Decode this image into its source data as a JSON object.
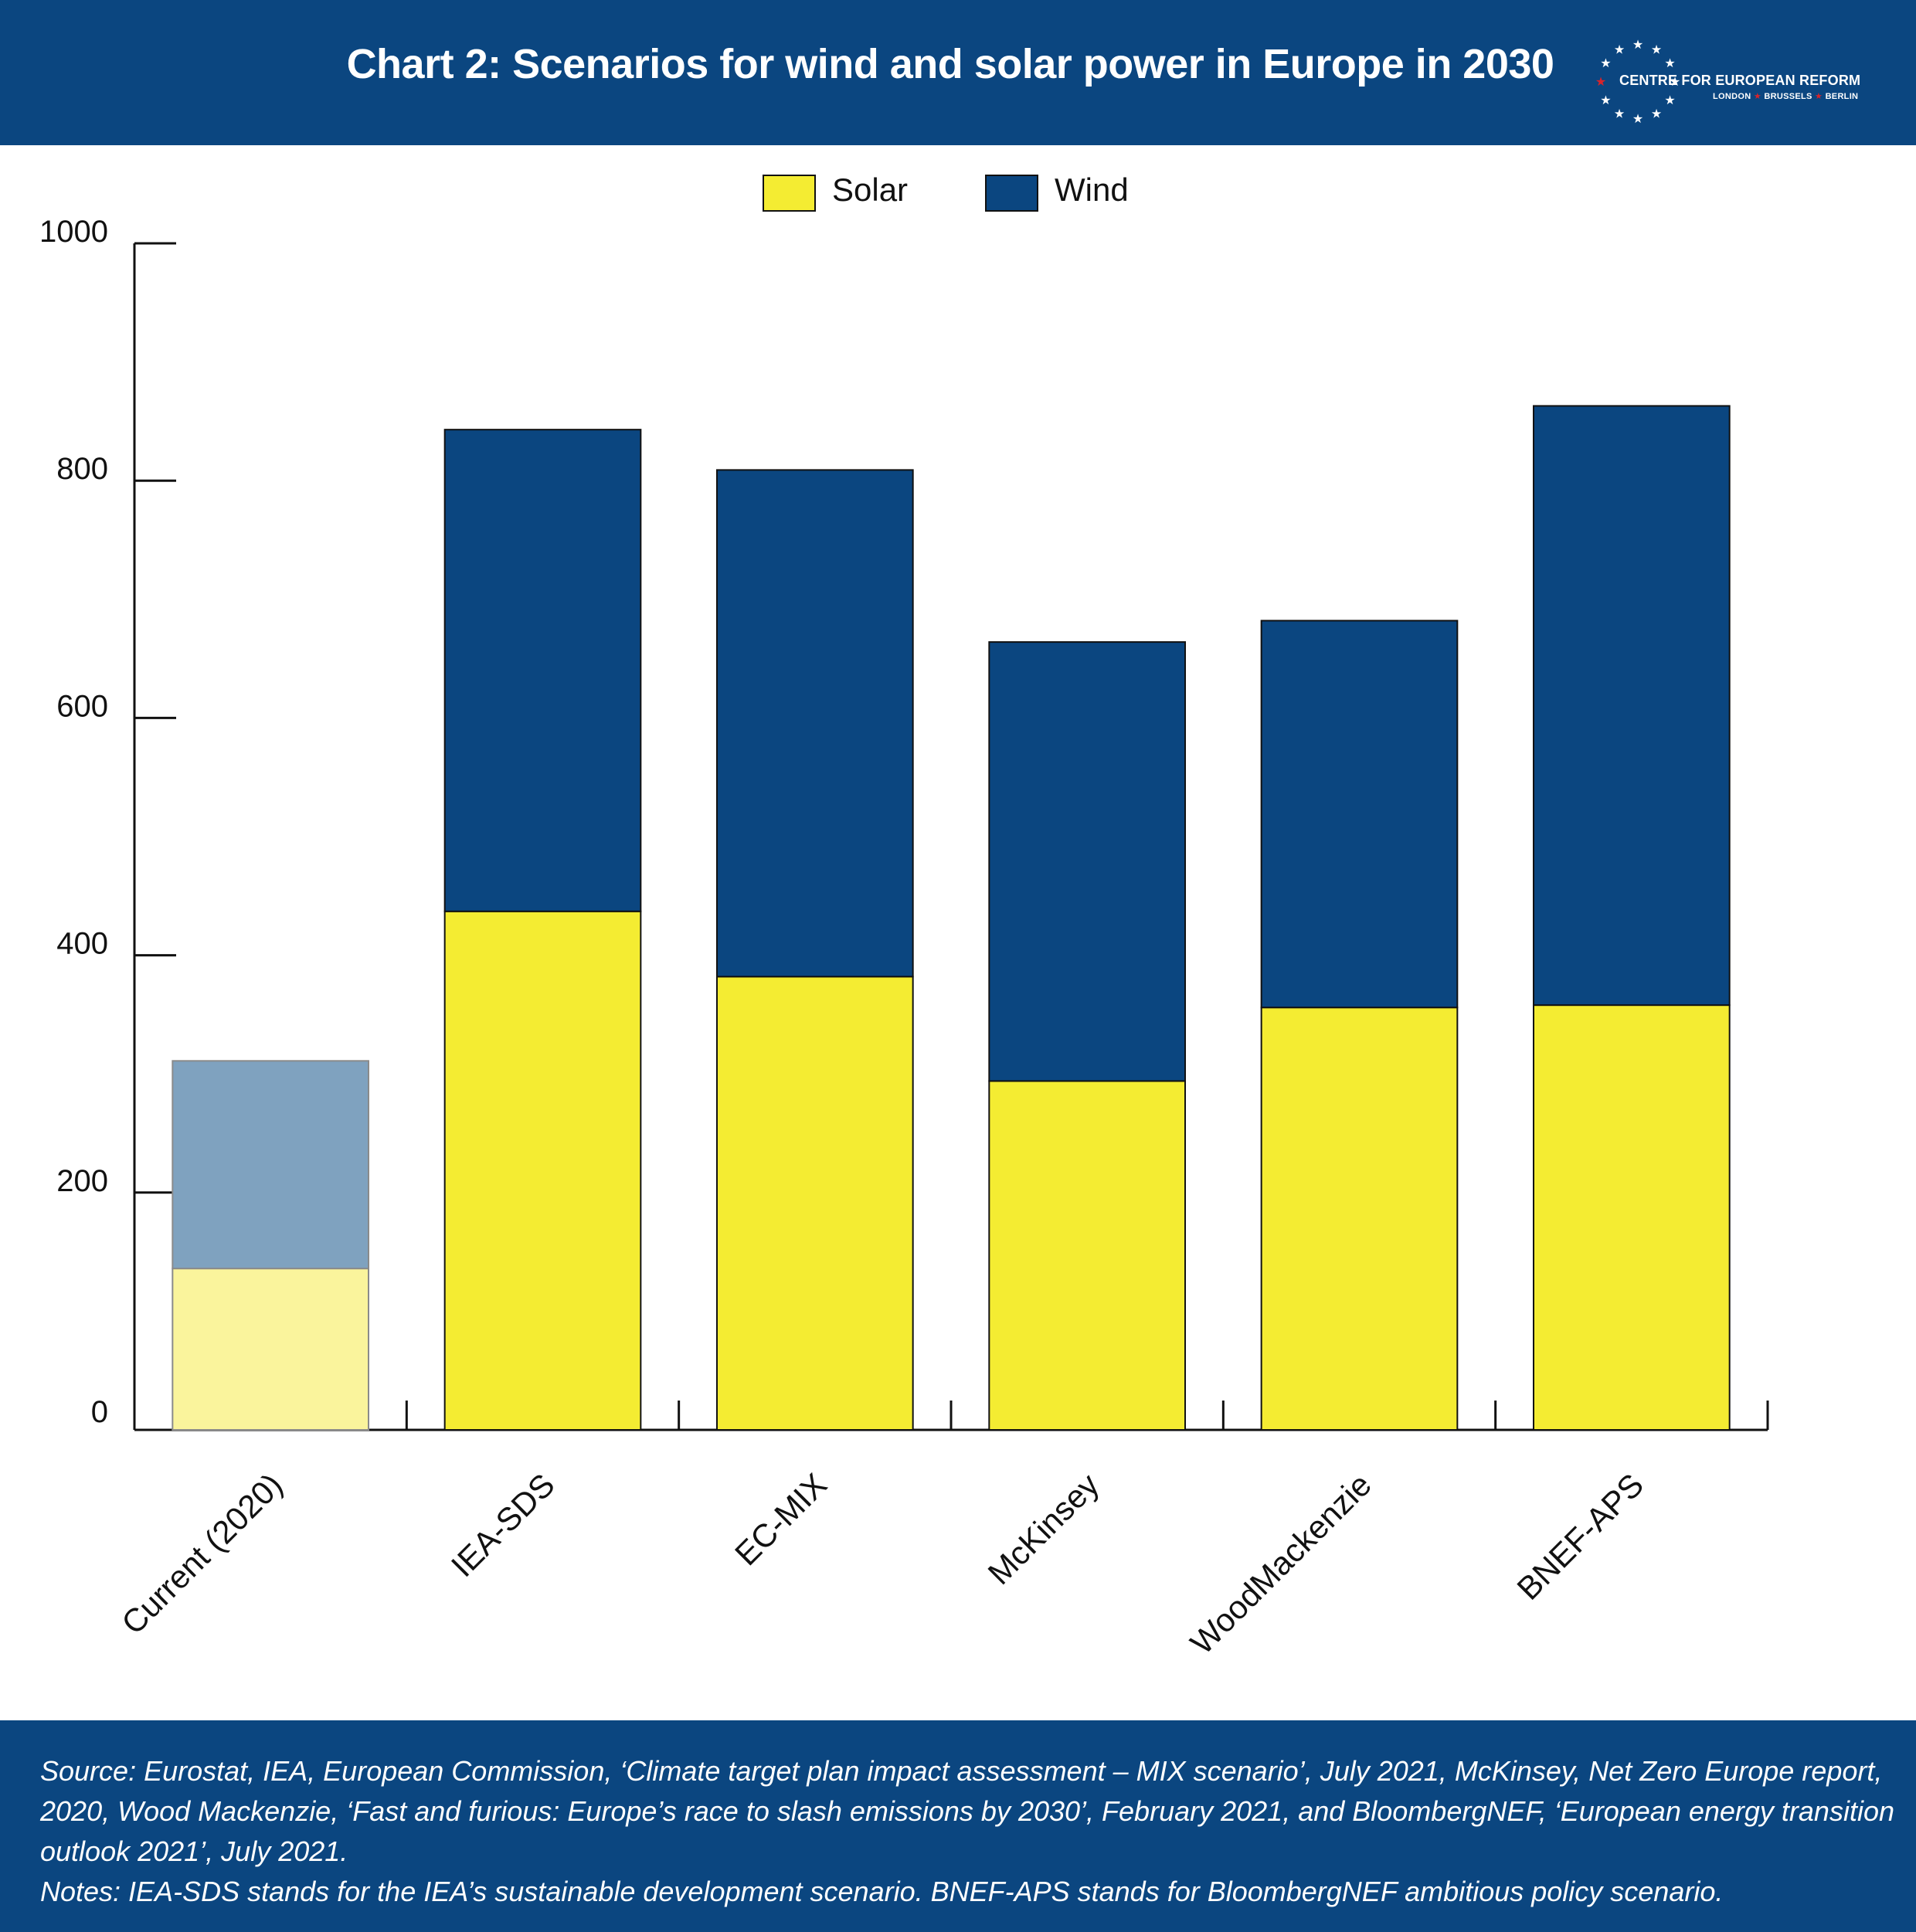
{
  "header": {
    "title": "Chart 2: Scenarios for wind and solar power in Europe in 2030",
    "logo": {
      "name": "CENTRE FOR EUROPEAN REFORM",
      "cities": [
        "LONDON",
        "BRUSSELS",
        "BERLIN"
      ]
    }
  },
  "chart_data": {
    "type": "bar",
    "stacked": true,
    "title": "Chart 2: Scenarios for wind and solar power in Europe in 2030",
    "xlabel": "",
    "ylabel": "",
    "ylim": [
      0,
      1000
    ],
    "yticks": [
      0,
      200,
      400,
      600,
      800,
      1000
    ],
    "categories": [
      "Current (2020)",
      "IEA-SDS",
      "EC-MIX",
      "McKinsey",
      "WoodMackenzie",
      "BNEF-APS"
    ],
    "series": [
      {
        "name": "Solar",
        "color": "#f4ec32",
        "faded_color": "#faf49c",
        "values": [
          136,
          437,
          382,
          294,
          356,
          358
        ]
      },
      {
        "name": "Wind",
        "color": "#0b4680",
        "faded_color": "#7fa2bf",
        "values": [
          175,
          406,
          427,
          370,
          326,
          505
        ]
      }
    ],
    "faded_categories": [
      "Current (2020)"
    ],
    "legend_position": "top-center",
    "grid": false
  },
  "footer": {
    "source": "Source: Eurostat, IEA, European Commission, ‘Climate target plan impact assessment – MIX scenario’, July 2021, McKinsey, Net Zero Europe report, 2020, Wood Mackenzie, ‘Fast and furious: Europe’s race to slash emissions by 2030’, February 2021, and BloombergNEF, ‘European energy transition outlook 2021’, July 2021.",
    "notes": "Notes: IEA-SDS stands for the IEA’s sustainable development scenario. BNEF-APS stands for BloombergNEF ambitious policy scenario."
  }
}
